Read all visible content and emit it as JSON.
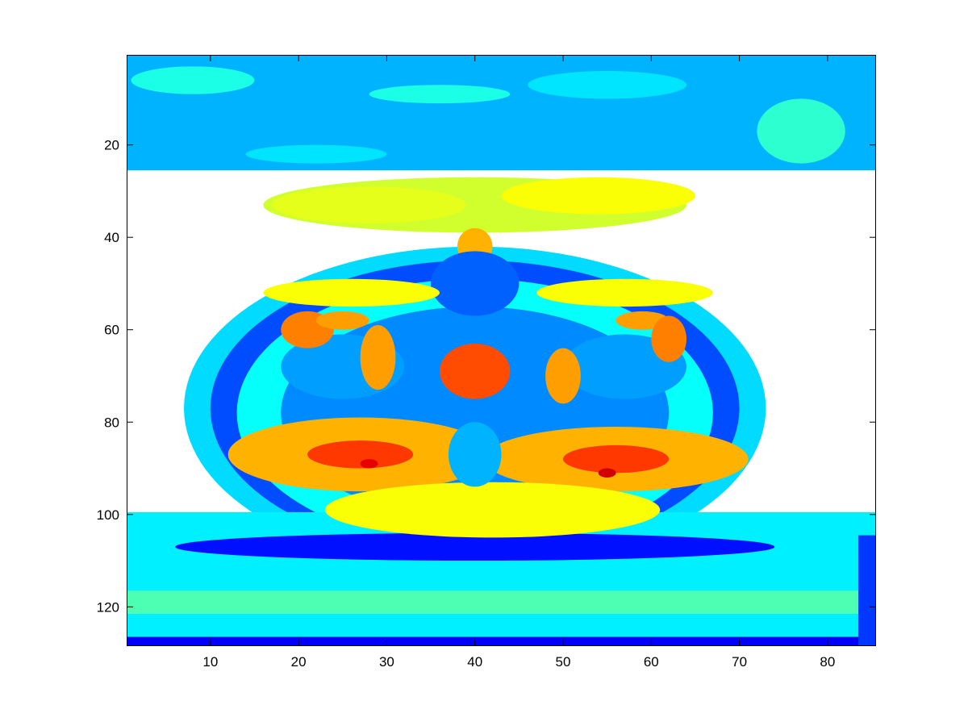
{
  "chart_data": {
    "type": "heatmap",
    "title": "",
    "xlabel": "",
    "ylabel": "",
    "colormap": "jet",
    "colormap_stops": [
      "#00008f",
      "#0000ff",
      "#00ffff",
      "#ffff00",
      "#ff0000",
      "#800000"
    ],
    "value_range": [
      0,
      1
    ],
    "xlim": [
      0.5,
      85.5
    ],
    "ylim": [
      0.5,
      128.5
    ],
    "y_reversed": true,
    "x_ticks": [
      10,
      20,
      30,
      40,
      50,
      60,
      70,
      80
    ],
    "y_ticks": [
      20,
      40,
      60,
      80,
      100,
      120
    ],
    "x_tick_labels": [
      "10",
      "20",
      "30",
      "40",
      "50",
      "60",
      "70",
      "80"
    ],
    "y_tick_labels": [
      "20",
      "40",
      "60",
      "80",
      "100",
      "120"
    ],
    "grid": false,
    "legend": "none",
    "image_size": [
      85,
      128
    ],
    "regions": [
      {
        "shape": "rect",
        "x": [
          1,
          85
        ],
        "y": [
          1,
          25
        ],
        "value": 0.3
      },
      {
        "shape": "ellipse",
        "cx": 8,
        "cy": 6,
        "rx": 7,
        "ry": 3,
        "value": 0.4
      },
      {
        "shape": "ellipse",
        "cx": 36,
        "cy": 9,
        "rx": 8,
        "ry": 2,
        "value": 0.4
      },
      {
        "shape": "ellipse",
        "cx": 55,
        "cy": 7,
        "rx": 9,
        "ry": 3,
        "value": 0.35
      },
      {
        "shape": "ellipse",
        "cx": 77,
        "cy": 17,
        "rx": 5,
        "ry": 7,
        "value": 0.42
      },
      {
        "shape": "ellipse",
        "cx": 22,
        "cy": 22,
        "rx": 8,
        "ry": 2,
        "value": 0.35
      },
      {
        "shape": "ellipse",
        "cx": 40,
        "cy": 77,
        "rx": 33,
        "ry": 35,
        "value": 0.34
      },
      {
        "shape": "ellipse",
        "cx": 40,
        "cy": 77,
        "rx": 30,
        "ry": 32,
        "value": 0.2
      },
      {
        "shape": "ellipse",
        "cx": 40,
        "cy": 78,
        "rx": 27,
        "ry": 29,
        "value": 0.38
      },
      {
        "shape": "ellipse",
        "cx": 40,
        "cy": 78,
        "rx": 22,
        "ry": 23,
        "value": 0.26
      },
      {
        "shape": "rect",
        "x": [
          1,
          85
        ],
        "y": [
          100,
          128
        ],
        "value": 0.36
      },
      {
        "shape": "rect",
        "x": [
          1,
          85
        ],
        "y": [
          117,
          121
        ],
        "value": 0.45
      },
      {
        "shape": "rect",
        "x": [
          1,
          85
        ],
        "y": [
          127,
          128
        ],
        "value": 0.12
      },
      {
        "shape": "rect",
        "x": [
          84,
          85
        ],
        "y": [
          105,
          128
        ],
        "value": 0.18
      },
      {
        "shape": "ellipse",
        "cx": 40,
        "cy": 107,
        "rx": 34,
        "ry": 3,
        "value": 0.14
      },
      {
        "shape": "ellipse",
        "cx": 40,
        "cy": 33,
        "rx": 24,
        "ry": 6,
        "value": 0.58
      },
      {
        "shape": "ellipse",
        "cx": 28,
        "cy": 33,
        "rx": 11,
        "ry": 4,
        "value": 0.6
      },
      {
        "shape": "ellipse",
        "cx": 54,
        "cy": 31,
        "rx": 11,
        "ry": 4,
        "value": 0.62
      },
      {
        "shape": "ellipse",
        "cx": 40,
        "cy": 42,
        "rx": 2,
        "ry": 4,
        "value": 0.7
      },
      {
        "shape": "ellipse",
        "cx": 40,
        "cy": 50,
        "rx": 5,
        "ry": 7,
        "value": 0.22
      },
      {
        "shape": "ellipse",
        "cx": 26,
        "cy": 52,
        "rx": 10,
        "ry": 3,
        "value": 0.62
      },
      {
        "shape": "ellipse",
        "cx": 57,
        "cy": 52,
        "rx": 10,
        "ry": 3,
        "value": 0.62
      },
      {
        "shape": "ellipse",
        "cx": 25,
        "cy": 68,
        "rx": 7,
        "ry": 7,
        "value": 0.28
      },
      {
        "shape": "ellipse",
        "cx": 57,
        "cy": 68,
        "rx": 7,
        "ry": 7,
        "value": 0.28
      },
      {
        "shape": "ellipse",
        "cx": 21,
        "cy": 60,
        "rx": 3,
        "ry": 4,
        "value": 0.75
      },
      {
        "shape": "ellipse",
        "cx": 25,
        "cy": 58,
        "rx": 3,
        "ry": 2,
        "value": 0.72
      },
      {
        "shape": "ellipse",
        "cx": 29,
        "cy": 66,
        "rx": 2,
        "ry": 7,
        "value": 0.72
      },
      {
        "shape": "ellipse",
        "cx": 59,
        "cy": 58,
        "rx": 3,
        "ry": 2,
        "value": 0.72
      },
      {
        "shape": "ellipse",
        "cx": 62,
        "cy": 62,
        "rx": 2,
        "ry": 5,
        "value": 0.75
      },
      {
        "shape": "ellipse",
        "cx": 50,
        "cy": 70,
        "rx": 2,
        "ry": 6,
        "value": 0.72
      },
      {
        "shape": "ellipse",
        "cx": 40,
        "cy": 69,
        "rx": 4,
        "ry": 6,
        "value": 0.8
      },
      {
        "shape": "ellipse",
        "cx": 27,
        "cy": 87,
        "rx": 15,
        "ry": 8,
        "value": 0.7
      },
      {
        "shape": "ellipse",
        "cx": 56,
        "cy": 88,
        "rx": 15,
        "ry": 7,
        "value": 0.7
      },
      {
        "shape": "ellipse",
        "cx": 42,
        "cy": 99,
        "rx": 19,
        "ry": 6,
        "value": 0.62
      },
      {
        "shape": "ellipse",
        "cx": 40,
        "cy": 87,
        "rx": 3,
        "ry": 7,
        "value": 0.3
      },
      {
        "shape": "ellipse",
        "cx": 27,
        "cy": 87,
        "rx": 6,
        "ry": 3,
        "value": 0.82
      },
      {
        "shape": "ellipse",
        "cx": 56,
        "cy": 88,
        "rx": 6,
        "ry": 3,
        "value": 0.82
      },
      {
        "shape": "ellipse",
        "cx": 55,
        "cy": 91,
        "rx": 1,
        "ry": 1,
        "value": 0.92
      },
      {
        "shape": "ellipse",
        "cx": 28,
        "cy": 89,
        "rx": 1,
        "ry": 1,
        "value": 0.9
      }
    ]
  }
}
